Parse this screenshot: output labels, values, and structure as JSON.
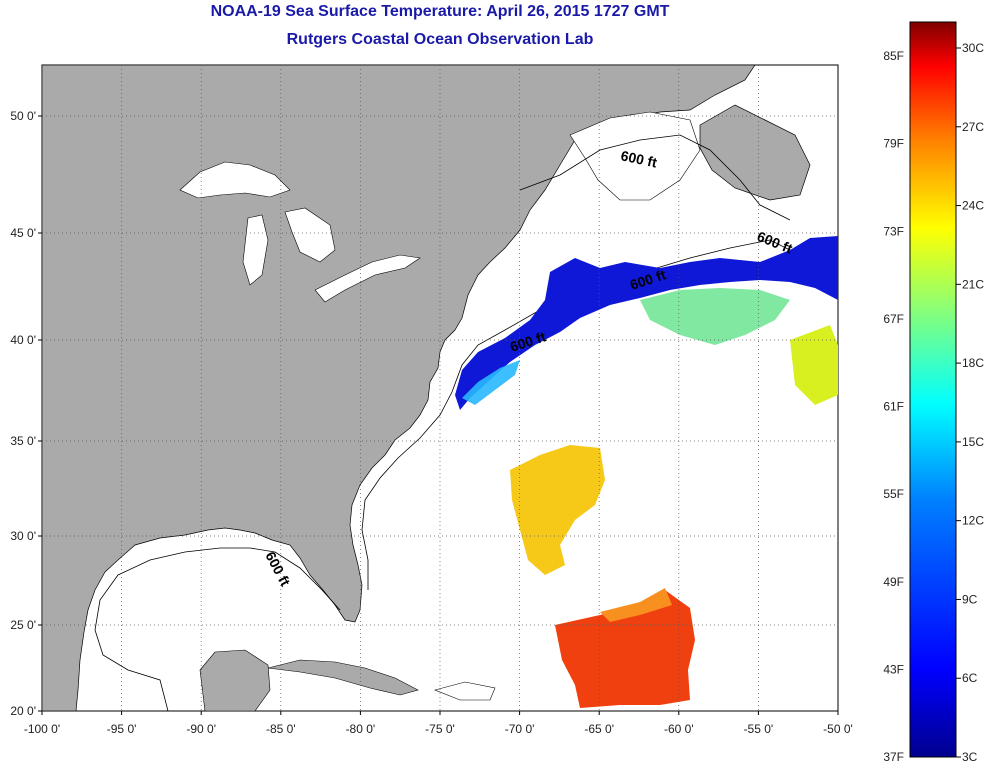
{
  "title": "NOAA-19 Sea Surface Temperature:  April 26, 2015 1727 GMT",
  "subtitle": "Rutgers Coastal Ocean Observation Lab",
  "x_ticks": [
    "-100 0'",
    "-95 0'",
    "-90 0'",
    "-85 0'",
    "-80 0'",
    "-75 0'",
    "-70 0'",
    "-65 0'",
    "-60 0'",
    "-55 0'",
    "-50 0'"
  ],
  "y_ticks": [
    "20 0'",
    "25 0'",
    "30 0'",
    "35 0'",
    "40 0'",
    "45 0'",
    "50 0'"
  ],
  "contour_labels": [
    "600 ft",
    "600 ft",
    "600 ft",
    "600 ft",
    "600 ft"
  ],
  "colorbar": {
    "fahrenheit": [
      "85F",
      "79F",
      "73F",
      "67F",
      "61F",
      "55F",
      "49F",
      "43F",
      "37F"
    ],
    "celsius": [
      "30C",
      "27C",
      "24C",
      "21C",
      "18C",
      "15C",
      "12C",
      "9C",
      "6C",
      "3C"
    ],
    "colors": [
      "#7f0000",
      "#ff0000",
      "#ff8000",
      "#ffff00",
      "#80ff80",
      "#00ffff",
      "#0080ff",
      "#0000ff",
      "#00008f"
    ]
  },
  "colors": {
    "land": "#aaaaaa",
    "ocean": "#ffffff",
    "title": "#1a1aa8"
  }
}
